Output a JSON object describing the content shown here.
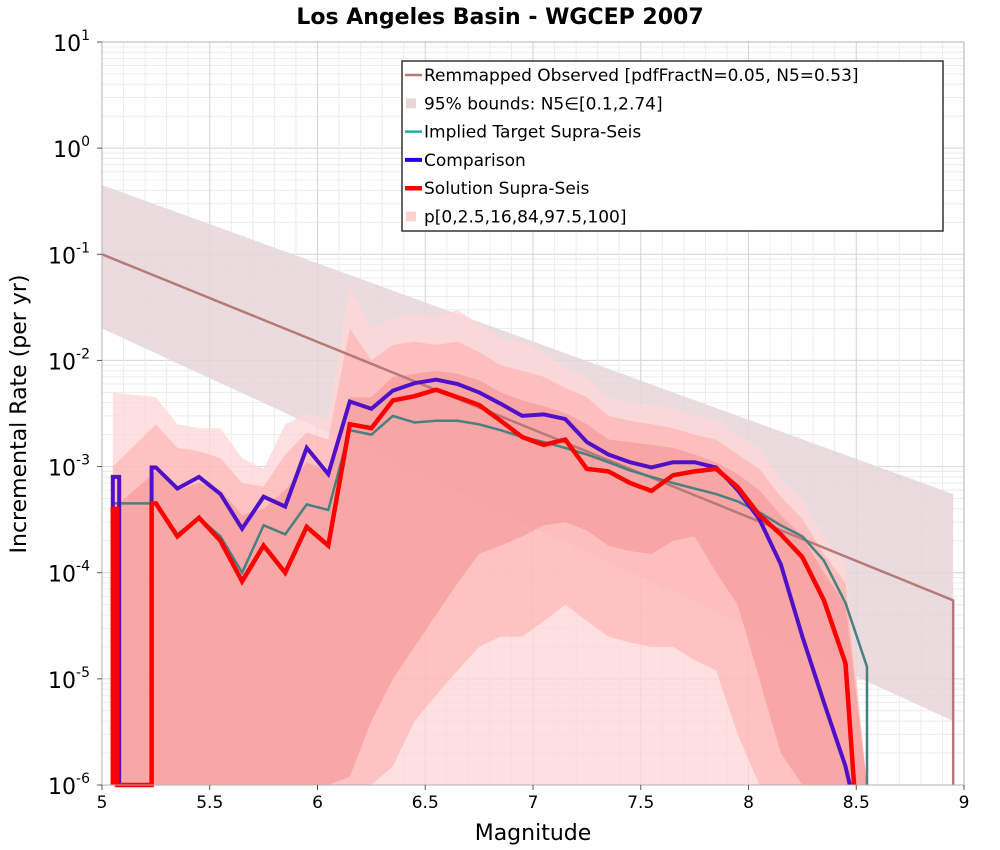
{
  "chart_data": {
    "type": "line",
    "title": "Los Angeles Basin - WGCEP 2007",
    "xlabel": "Magnitude",
    "ylabel": "Incremental Rate (per yr)",
    "xlim": [
      5,
      9
    ],
    "ylim": [
      1e-06,
      10
    ],
    "y_scale": "log",
    "grid": true,
    "legend_position": "top-right",
    "x_ticks": [
      "5",
      "5.5",
      "6",
      "6.5",
      "7",
      "7.5",
      "8",
      "8.5",
      "9"
    ],
    "y_ticks": [
      {
        "base": "10",
        "exp": "-6",
        "value": 1e-06
      },
      {
        "base": "10",
        "exp": "-5",
        "value": 1e-05
      },
      {
        "base": "10",
        "exp": "-4",
        "value": 0.0001
      },
      {
        "base": "10",
        "exp": "-3",
        "value": 0.001
      },
      {
        "base": "10",
        "exp": "-2",
        "value": 0.01
      },
      {
        "base": "10",
        "exp": "-1",
        "value": 0.1
      },
      {
        "base": "10",
        "exp": "0",
        "value": 1
      },
      {
        "base": "10",
        "exp": "1",
        "value": 10
      }
    ],
    "legend": [
      {
        "label": "Remmapped Observed [pdfFractN=0.05, N5=0.53]",
        "kind": "line",
        "series": "observed"
      },
      {
        "label": "95% bounds: N5∈[0.1,2.74]",
        "kind": "band",
        "series": "observed_bounds"
      },
      {
        "label": "Implied Target Supra-Seis",
        "kind": "line",
        "series": "implied"
      },
      {
        "label": "Comparison",
        "kind": "line",
        "series": "comparison"
      },
      {
        "label": "Solution Supra-Seis",
        "kind": "line",
        "series": "solution"
      },
      {
        "label": "p[0,2.5,16,84,97.5,100]",
        "kind": "band",
        "series": "percentiles"
      }
    ],
    "colors": {
      "observed": "#b87878",
      "observed_bounds": "#e6d6d8",
      "implied": "#2aa8a8",
      "implied_overlap": "#4a7f80",
      "comparison": "#2200ee",
      "comparison_overlap": "#5010c8",
      "solution": "#ff0000",
      "band_outer": "#ffd6d6",
      "band_mid": "#ffaaaa",
      "band_inner": "#f08888"
    },
    "observed_line": {
      "x": [
        5.0,
        8.95,
        8.95
      ],
      "y": [
        0.1,
        5.5e-05,
        1e-06
      ]
    },
    "observed_bounds": {
      "x": [
        5.0,
        8.95
      ],
      "upper": [
        0.45,
        0.00055
      ],
      "lower": [
        0.02,
        4e-06
      ]
    },
    "series": [
      {
        "key": "implied",
        "name": "Implied Target Supra-Seis",
        "x": [
          5.05,
          5.05,
          5.25,
          5.25,
          5.35,
          5.45,
          5.55,
          5.65,
          5.75,
          5.85,
          5.95,
          6.05,
          6.15,
          6.25,
          6.35,
          6.45,
          6.55,
          6.65,
          6.75,
          6.85,
          6.95,
          7.05,
          7.15,
          7.25,
          7.35,
          7.45,
          7.55,
          7.65,
          7.75,
          7.85,
          7.95,
          8.05,
          8.15,
          8.25,
          8.35,
          8.45,
          8.55,
          8.55
        ],
        "y": [
          1e-06,
          0.00045,
          0.00045,
          0.00045,
          0.00023,
          0.00033,
          0.00022,
          0.0001,
          0.00028,
          0.00023,
          0.00044,
          0.00039,
          0.0022,
          0.002,
          0.003,
          0.0026,
          0.0027,
          0.0027,
          0.0025,
          0.0022,
          0.0019,
          0.0017,
          0.0015,
          0.0013,
          0.0011,
          0.00092,
          0.0008,
          0.0007,
          0.00062,
          0.00055,
          0.00047,
          0.00037,
          0.00028,
          0.00022,
          0.00013,
          5.2e-05,
          1.3e-05,
          1e-06
        ]
      },
      {
        "key": "comparison",
        "name": "Comparison",
        "x": [
          5.05,
          5.05,
          5.08,
          5.08,
          5.23,
          5.23,
          5.25,
          5.35,
          5.45,
          5.55,
          5.65,
          5.75,
          5.85,
          5.95,
          6.05,
          6.15,
          6.25,
          6.35,
          6.45,
          6.55,
          6.65,
          6.75,
          6.85,
          6.95,
          7.05,
          7.15,
          7.25,
          7.35,
          7.45,
          7.55,
          7.65,
          7.75,
          7.85,
          7.95,
          8.05,
          8.15,
          8.25,
          8.35,
          8.45,
          8.47
        ],
        "y": [
          1e-06,
          0.0008,
          0.0008,
          1e-06,
          1e-06,
          0.00098,
          0.00098,
          0.00062,
          0.0008,
          0.00055,
          0.00026,
          0.00052,
          0.00042,
          0.0015,
          0.00085,
          0.0041,
          0.0035,
          0.0052,
          0.0061,
          0.0066,
          0.006,
          0.005,
          0.0039,
          0.003,
          0.0031,
          0.0028,
          0.0017,
          0.0013,
          0.0011,
          0.00098,
          0.0011,
          0.0011,
          0.00098,
          0.0006,
          0.00032,
          0.00012,
          2.5e-05,
          6e-06,
          1.5e-06,
          1e-06
        ]
      },
      {
        "key": "solution",
        "name": "Solution Supra-Seis",
        "x": [
          5.05,
          5.05,
          5.07,
          5.07,
          5.23,
          5.23,
          5.25,
          5.35,
          5.45,
          5.55,
          5.65,
          5.75,
          5.85,
          5.95,
          6.05,
          6.15,
          6.25,
          6.35,
          6.45,
          6.55,
          6.65,
          6.75,
          6.85,
          6.95,
          7.05,
          7.15,
          7.25,
          7.35,
          7.45,
          7.55,
          7.65,
          7.75,
          7.85,
          7.95,
          8.05,
          8.15,
          8.25,
          8.35,
          8.45,
          8.49
        ],
        "y": [
          1e-06,
          0.0004,
          0.0004,
          1e-06,
          1e-06,
          0.00045,
          0.00045,
          0.00022,
          0.00033,
          0.0002,
          8.3e-05,
          0.00018,
          0.0001,
          0.00027,
          0.00018,
          0.0025,
          0.0023,
          0.0042,
          0.0046,
          0.0053,
          0.0045,
          0.0038,
          0.0027,
          0.0019,
          0.0016,
          0.0018,
          0.00095,
          0.0009,
          0.0007,
          0.00059,
          0.00083,
          0.0009,
          0.00095,
          0.00064,
          0.00035,
          0.00023,
          0.00014,
          5.5e-05,
          1.4e-05,
          1e-06
        ]
      }
    ],
    "percentile_bands": {
      "x": [
        5.05,
        5.25,
        5.35,
        5.45,
        5.55,
        5.65,
        5.75,
        5.85,
        5.95,
        6.05,
        6.15,
        6.25,
        6.35,
        6.45,
        6.55,
        6.65,
        6.75,
        6.85,
        6.95,
        7.05,
        7.15,
        7.25,
        7.35,
        7.45,
        7.55,
        7.65,
        7.75,
        7.85,
        7.95,
        8.05,
        8.15,
        8.25,
        8.35,
        8.45,
        8.55
      ],
      "p100": [
        0.005,
        0.0045,
        0.0025,
        0.0023,
        0.0023,
        0.0012,
        0.00095,
        0.0025,
        0.0032,
        0.0028,
        0.05,
        0.02,
        0.025,
        0.028,
        0.025,
        0.03,
        0.022,
        0.016,
        0.015,
        0.012,
        0.0085,
        0.007,
        0.0045,
        0.004,
        0.0038,
        0.0035,
        0.003,
        0.0028,
        0.002,
        0.0015,
        0.00075,
        0.0005,
        0.00022,
        0.00012,
        1e-06
      ],
      "p97_5": [
        0.001,
        0.0025,
        0.0015,
        0.0014,
        0.0012,
        0.0007,
        0.00065,
        0.0013,
        0.0021,
        0.0018,
        0.02,
        0.01,
        0.014,
        0.015,
        0.014,
        0.015,
        0.012,
        0.009,
        0.008,
        0.007,
        0.0055,
        0.0045,
        0.003,
        0.0027,
        0.0025,
        0.0023,
        0.002,
        0.0018,
        0.0013,
        0.00095,
        0.00052,
        0.00032,
        0.00015,
        8e-05,
        1e-06
      ],
      "p84": [
        0.0004,
        0.0009,
        0.0006,
        0.0007,
        0.0006,
        0.00035,
        0.0004,
        0.0006,
        0.0011,
        0.0009,
        0.0045,
        0.0045,
        0.007,
        0.0075,
        0.008,
        0.0075,
        0.0065,
        0.005,
        0.0042,
        0.0037,
        0.0032,
        0.0025,
        0.0018,
        0.0017,
        0.0016,
        0.0015,
        0.0013,
        0.0011,
        0.00085,
        0.0006,
        0.00035,
        0.00022,
        0.0001,
        5e-05,
        1e-06
      ],
      "p16": [
        1e-06,
        1e-06,
        1e-06,
        1e-06,
        1e-06,
        1e-06,
        1e-06,
        1e-06,
        1e-06,
        1e-06,
        1.2e-06,
        4e-06,
        1e-05,
        2e-05,
        4e-05,
        8e-05,
        0.00015,
        0.00018,
        0.00022,
        0.00028,
        0.0003,
        0.00025,
        0.00018,
        0.00016,
        0.00015,
        0.0002,
        0.00022,
        0.0001,
        5e-05,
        1e-05,
        2e-06,
        1e-06,
        1e-06,
        1e-06,
        1e-06
      ],
      "p2_5": [
        1e-06,
        1e-06,
        1e-06,
        1e-06,
        1e-06,
        1e-06,
        1e-06,
        1e-06,
        1e-06,
        1e-06,
        1e-06,
        1e-06,
        1.5e-06,
        4e-06,
        7e-06,
        1.2e-05,
        2e-05,
        2.5e-05,
        2.5e-05,
        3.5e-05,
        5e-05,
        3.5e-05,
        2.5e-05,
        2.2e-05,
        2e-05,
        2e-05,
        1.5e-05,
        1.2e-05,
        3e-06,
        1e-06,
        1e-06,
        1e-06,
        1e-06,
        1e-06,
        1e-06
      ],
      "p0": [
        1e-06,
        1e-06,
        1e-06,
        1e-06,
        1e-06,
        1e-06,
        1e-06,
        1e-06,
        1e-06,
        1e-06,
        1e-06,
        1e-06,
        1e-06,
        1e-06,
        1e-06,
        1e-06,
        1e-06,
        1e-06,
        1e-06,
        1e-06,
        1e-06,
        1e-06,
        1e-06,
        1e-06,
        1e-06,
        1e-06,
        1e-06,
        1e-06,
        1e-06,
        1e-06,
        1e-06,
        1e-06,
        1e-06,
        1e-06,
        1e-06
      ]
    }
  }
}
